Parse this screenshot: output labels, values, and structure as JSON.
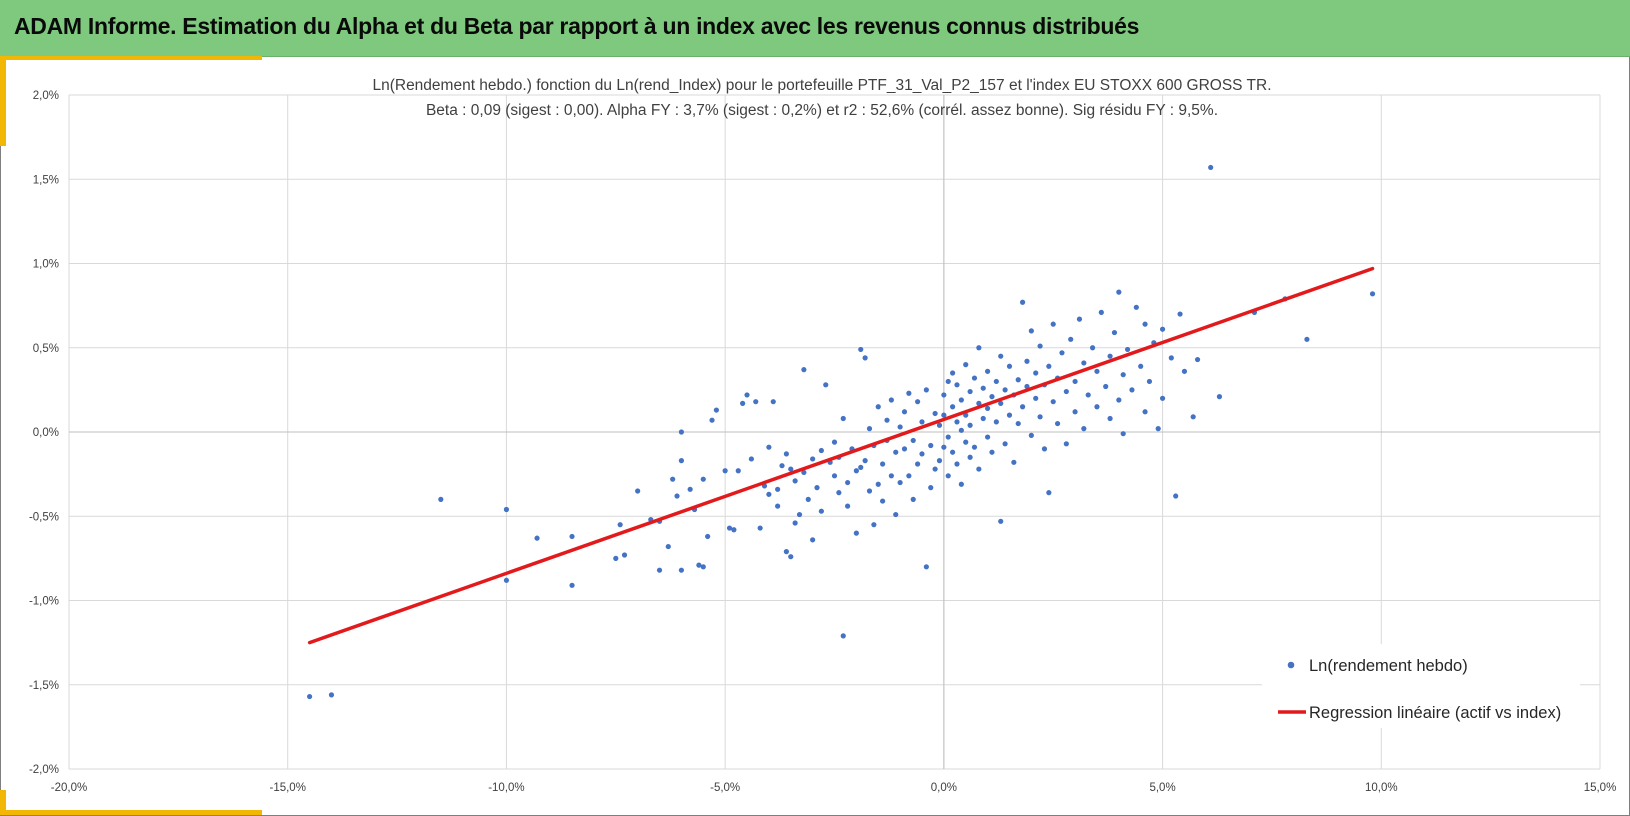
{
  "header": {
    "title": "ADAM Informe. Estimation du Alpha et du Beta par rapport à un index avec les revenus connus distribués"
  },
  "colors": {
    "header_bg": "#7ec97d",
    "accent": "#f2b705",
    "points": "#4472c4",
    "regression": "#e31a1c",
    "grid": "#d9d9d9"
  },
  "chart_data": {
    "type": "scatter",
    "title": "Ln(Rendement hebdo.) fonction du Ln(rend_Index) pour le portefeuille PTF_31_Val_P2_157 et l'index EU STOXX 600 GROSS TR.",
    "subtitle": "Beta : 0,09 (sigest : 0,00).  Alpha FY : 3,7% (sigest : 0,2%) et r2 : 52,6% (corrél. assez bonne). Sig résidu FY : 9,5%.",
    "xlim": [
      -0.2,
      0.15
    ],
    "ylim": [
      -0.02,
      0.02
    ],
    "x_ticks": [
      "-20,0%",
      "-15,0%",
      "-10,0%",
      "-5,0%",
      "0,0%",
      "5,0%",
      "10,0%",
      "15,0%"
    ],
    "x_tick_values": [
      -0.2,
      -0.15,
      -0.1,
      -0.05,
      0.0,
      0.05,
      0.1,
      0.15
    ],
    "y_ticks": [
      "2,0%",
      "1,5%",
      "1,0%",
      "0,5%",
      "0,0%",
      "-0,5%",
      "-1,0%",
      "-1,5%",
      "-2,0%"
    ],
    "y_tick_values": [
      0.02,
      0.015,
      0.01,
      0.005,
      0.0,
      -0.005,
      -0.01,
      -0.015,
      -0.02
    ],
    "grid": true,
    "legend_position": "bottom-right",
    "series": [
      {
        "name": "Ln(rendement hebdo)",
        "type": "scatter",
        "color": "#4472c4",
        "points": [
          [
            -0.145,
            -0.0157
          ],
          [
            -0.14,
            -0.0156
          ],
          [
            -0.115,
            -0.004
          ],
          [
            -0.1,
            -0.0046
          ],
          [
            -0.1,
            -0.0088
          ],
          [
            -0.093,
            -0.0063
          ],
          [
            -0.085,
            -0.0091
          ],
          [
            -0.085,
            -0.0062
          ],
          [
            -0.075,
            -0.0075
          ],
          [
            -0.074,
            -0.0055
          ],
          [
            -0.073,
            -0.0073
          ],
          [
            -0.07,
            -0.0035
          ],
          [
            -0.067,
            -0.0052
          ],
          [
            -0.065,
            -0.0082
          ],
          [
            -0.065,
            -0.0053
          ],
          [
            -0.063,
            -0.0068
          ],
          [
            -0.062,
            -0.0028
          ],
          [
            -0.061,
            -0.0038
          ],
          [
            -0.06,
            -0.0017
          ],
          [
            -0.06,
            -0.0082
          ],
          [
            -0.06,
            0.0
          ],
          [
            -0.058,
            -0.0034
          ],
          [
            -0.057,
            -0.0046
          ],
          [
            -0.056,
            -0.0079
          ],
          [
            -0.055,
            -0.0028
          ],
          [
            -0.055,
            -0.008
          ],
          [
            -0.054,
            -0.0062
          ],
          [
            -0.053,
            0.0007
          ],
          [
            -0.052,
            0.0013
          ],
          [
            -0.05,
            -0.0023
          ],
          [
            -0.049,
            -0.0057
          ],
          [
            -0.048,
            -0.0058
          ],
          [
            -0.047,
            -0.0023
          ],
          [
            -0.046,
            0.0017
          ],
          [
            -0.045,
            0.0022
          ],
          [
            -0.044,
            -0.0016
          ],
          [
            -0.043,
            0.0018
          ],
          [
            -0.042,
            -0.0057
          ],
          [
            -0.041,
            -0.0032
          ],
          [
            -0.04,
            -0.0009
          ],
          [
            -0.04,
            -0.0037
          ],
          [
            -0.039,
            0.0018
          ],
          [
            -0.038,
            -0.0034
          ],
          [
            -0.038,
            -0.0044
          ],
          [
            -0.037,
            -0.002
          ],
          [
            -0.036,
            -0.0071
          ],
          [
            -0.036,
            -0.0013
          ],
          [
            -0.035,
            -0.0074
          ],
          [
            -0.035,
            -0.0022
          ],
          [
            -0.034,
            -0.0029
          ],
          [
            -0.034,
            -0.0054
          ],
          [
            -0.033,
            -0.0049
          ],
          [
            -0.032,
            0.0037
          ],
          [
            -0.032,
            -0.0024
          ],
          [
            -0.031,
            -0.004
          ],
          [
            -0.03,
            -0.0016
          ],
          [
            -0.03,
            -0.0064
          ],
          [
            -0.029,
            -0.0033
          ],
          [
            -0.028,
            -0.0011
          ],
          [
            -0.028,
            -0.0047
          ],
          [
            -0.027,
            0.0028
          ],
          [
            -0.026,
            -0.0018
          ],
          [
            -0.025,
            -0.0006
          ],
          [
            -0.025,
            -0.0026
          ],
          [
            -0.024,
            -0.0036
          ],
          [
            -0.024,
            -0.0015
          ],
          [
            -0.023,
            0.0008
          ],
          [
            -0.023,
            -0.0121
          ],
          [
            -0.022,
            -0.003
          ],
          [
            -0.022,
            -0.0044
          ],
          [
            -0.021,
            -0.001
          ],
          [
            -0.02,
            -0.0023
          ],
          [
            -0.02,
            -0.006
          ],
          [
            -0.019,
            0.0049
          ],
          [
            -0.019,
            -0.0021
          ],
          [
            -0.018,
            0.0044
          ],
          [
            -0.018,
            -0.0017
          ],
          [
            -0.017,
            0.0002
          ],
          [
            -0.017,
            -0.0035
          ],
          [
            -0.016,
            -0.0008
          ],
          [
            -0.016,
            -0.0055
          ],
          [
            -0.015,
            -0.0031
          ],
          [
            -0.015,
            0.0015
          ],
          [
            -0.014,
            -0.0019
          ],
          [
            -0.014,
            -0.0041
          ],
          [
            -0.013,
            0.0007
          ],
          [
            -0.013,
            -0.0005
          ],
          [
            -0.012,
            -0.0026
          ],
          [
            -0.012,
            0.0019
          ],
          [
            -0.011,
            -0.0012
          ],
          [
            -0.011,
            -0.0049
          ],
          [
            -0.01,
            0.0003
          ],
          [
            -0.01,
            -0.003
          ],
          [
            -0.009,
            0.0012
          ],
          [
            -0.009,
            -0.001
          ],
          [
            -0.008,
            0.0023
          ],
          [
            -0.008,
            -0.0026
          ],
          [
            -0.007,
            -0.0005
          ],
          [
            -0.007,
            -0.004
          ],
          [
            -0.006,
            0.0018
          ],
          [
            -0.006,
            -0.0019
          ],
          [
            -0.005,
            0.0006
          ],
          [
            -0.005,
            -0.0013
          ],
          [
            -0.004,
            -0.008
          ],
          [
            -0.004,
            0.0025
          ],
          [
            -0.003,
            -0.0008
          ],
          [
            -0.003,
            -0.0033
          ],
          [
            -0.002,
            0.0011
          ],
          [
            -0.002,
            -0.0022
          ],
          [
            -0.001,
            0.0004
          ],
          [
            -0.001,
            -0.0017
          ],
          [
            0.0,
            0.0022
          ],
          [
            0.0,
            -0.0009
          ],
          [
            0.0,
            0.001
          ],
          [
            0.001,
            -0.0003
          ],
          [
            0.001,
            0.003
          ],
          [
            0.001,
            -0.0026
          ],
          [
            0.002,
            0.0015
          ],
          [
            0.002,
            -0.0012
          ],
          [
            0.002,
            0.0035
          ],
          [
            0.003,
            0.0006
          ],
          [
            0.003,
            -0.0019
          ],
          [
            0.003,
            0.0028
          ],
          [
            0.004,
            0.0001
          ],
          [
            0.004,
            -0.0031
          ],
          [
            0.004,
            0.0019
          ],
          [
            0.005,
            0.001
          ],
          [
            0.005,
            -0.0006
          ],
          [
            0.005,
            0.004
          ],
          [
            0.006,
            0.0024
          ],
          [
            0.006,
            -0.0015
          ],
          [
            0.006,
            0.0004
          ],
          [
            0.007,
            0.0032
          ],
          [
            0.007,
            -0.0009
          ],
          [
            0.008,
            0.0017
          ],
          [
            0.008,
            -0.0022
          ],
          [
            0.008,
            0.005
          ],
          [
            0.009,
            0.0008
          ],
          [
            0.009,
            0.0026
          ],
          [
            0.01,
            -0.0003
          ],
          [
            0.01,
            0.0014
          ],
          [
            0.01,
            0.0036
          ],
          [
            0.011,
            0.0021
          ],
          [
            0.011,
            -0.0012
          ],
          [
            0.012,
            0.003
          ],
          [
            0.012,
            0.0006
          ],
          [
            0.013,
            0.0045
          ],
          [
            0.013,
            -0.0053
          ],
          [
            0.013,
            0.0017
          ],
          [
            0.014,
            0.0025
          ],
          [
            0.014,
            -0.0007
          ],
          [
            0.015,
            0.001
          ],
          [
            0.015,
            0.0039
          ],
          [
            0.016,
            0.0022
          ],
          [
            0.016,
            -0.0018
          ],
          [
            0.017,
            0.0031
          ],
          [
            0.017,
            0.0005
          ],
          [
            0.018,
            0.0077
          ],
          [
            0.018,
            0.0015
          ],
          [
            0.019,
            0.0042
          ],
          [
            0.019,
            0.0027
          ],
          [
            0.02,
            -0.0002
          ],
          [
            0.02,
            0.006
          ],
          [
            0.021,
            0.002
          ],
          [
            0.021,
            0.0035
          ],
          [
            0.022,
            0.0009
          ],
          [
            0.022,
            0.0051
          ],
          [
            0.023,
            0.0028
          ],
          [
            0.023,
            -0.001
          ],
          [
            0.024,
            0.0039
          ],
          [
            0.024,
            -0.0036
          ],
          [
            0.025,
            0.0018
          ],
          [
            0.025,
            0.0064
          ],
          [
            0.026,
            0.0032
          ],
          [
            0.026,
            0.0005
          ],
          [
            0.027,
            0.0047
          ],
          [
            0.028,
            0.0024
          ],
          [
            0.028,
            -0.0007
          ],
          [
            0.029,
            0.0055
          ],
          [
            0.03,
            0.003
          ],
          [
            0.03,
            0.0012
          ],
          [
            0.031,
            0.0067
          ],
          [
            0.032,
            0.0041
          ],
          [
            0.032,
            0.0002
          ],
          [
            0.033,
            0.0022
          ],
          [
            0.034,
            0.005
          ],
          [
            0.035,
            0.0015
          ],
          [
            0.035,
            0.0036
          ],
          [
            0.036,
            0.0071
          ],
          [
            0.037,
            0.0027
          ],
          [
            0.038,
            0.0008
          ],
          [
            0.038,
            0.0045
          ],
          [
            0.039,
            0.0059
          ],
          [
            0.04,
            0.0083
          ],
          [
            0.04,
            0.0019
          ],
          [
            0.041,
            0.0034
          ],
          [
            0.041,
            -0.0001
          ],
          [
            0.042,
            0.0049
          ],
          [
            0.043,
            0.0025
          ],
          [
            0.044,
            0.0074
          ],
          [
            0.045,
            0.0039
          ],
          [
            0.046,
            0.0012
          ],
          [
            0.046,
            0.0064
          ],
          [
            0.047,
            0.003
          ],
          [
            0.048,
            0.0053
          ],
          [
            0.049,
            0.0002
          ],
          [
            0.05,
            0.0061
          ],
          [
            0.05,
            0.002
          ],
          [
            0.052,
            0.0044
          ],
          [
            0.053,
            -0.0038
          ],
          [
            0.054,
            0.007
          ],
          [
            0.055,
            0.0036
          ],
          [
            0.057,
            0.0009
          ],
          [
            0.058,
            0.0043
          ],
          [
            0.061,
            0.0157
          ],
          [
            0.063,
            0.0021
          ],
          [
            0.071,
            0.0071
          ],
          [
            0.078,
            0.0079
          ],
          [
            0.083,
            0.0055
          ],
          [
            0.098,
            0.0082
          ]
        ]
      },
      {
        "name": "Regression linéaire (actif vs index)",
        "type": "line",
        "color": "#e31a1c",
        "points": [
          [
            -0.145,
            -0.0125
          ],
          [
            0.098,
            0.0097
          ]
        ]
      }
    ]
  }
}
